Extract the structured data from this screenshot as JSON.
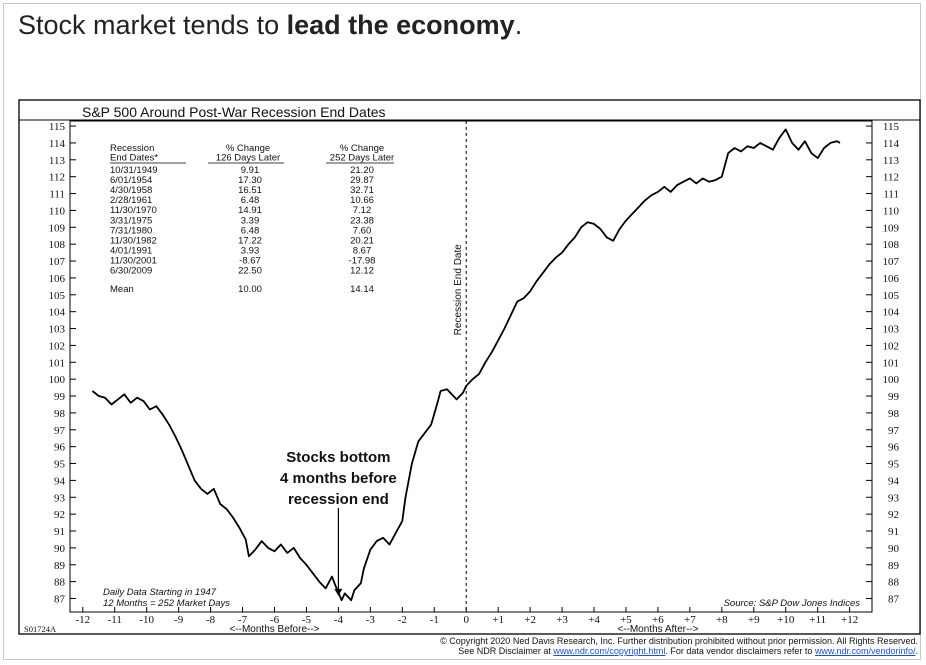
{
  "headline": {
    "prefix": "Stock market tends to ",
    "bold": "lead the economy",
    "suffix": "."
  },
  "chart_data": {
    "type": "line",
    "title": "S&P 500 Around Post-War Recession End Dates",
    "code": "S01724A",
    "ylim": [
      86.2,
      115.3
    ],
    "xlim": [
      -12.4,
      12.7
    ],
    "y_ticks": [
      87,
      88,
      89,
      90,
      91,
      92,
      93,
      94,
      95,
      96,
      97,
      98,
      99,
      100,
      101,
      102,
      103,
      104,
      105,
      106,
      107,
      108,
      109,
      110,
      111,
      112,
      113,
      114,
      115
    ],
    "x_ticks": [
      {
        "v": -12,
        "label": "-12"
      },
      {
        "v": -11,
        "label": "-11"
      },
      {
        "v": -10,
        "label": "-10"
      },
      {
        "v": -9,
        "label": "-9"
      },
      {
        "v": -8,
        "label": "-8"
      },
      {
        "v": -7,
        "label": "-7"
      },
      {
        "v": -6,
        "label": "-6"
      },
      {
        "v": -5,
        "label": "-5"
      },
      {
        "v": -4,
        "label": "-4"
      },
      {
        "v": -3,
        "label": "-3"
      },
      {
        "v": -2,
        "label": "-2"
      },
      {
        "v": -1,
        "label": "-1"
      },
      {
        "v": 0,
        "label": "0"
      },
      {
        "v": 1,
        "label": "+1"
      },
      {
        "v": 2,
        "label": "+2"
      },
      {
        "v": 3,
        "label": "+3"
      },
      {
        "v": 4,
        "label": "+4"
      },
      {
        "v": 5,
        "label": "+5"
      },
      {
        "v": 6,
        "label": "+6"
      },
      {
        "v": 7,
        "label": "+7"
      },
      {
        "v": 8,
        "label": "+8"
      },
      {
        "v": 9,
        "label": "+9"
      },
      {
        "v": 10,
        "label": "+10"
      },
      {
        "v": 11,
        "label": "+11"
      },
      {
        "v": 12,
        "label": "+12"
      }
    ],
    "xlabel_before": "<--Months Before-->",
    "xlabel_after": "<--Months After-->",
    "vline_label": "Recession End Date",
    "series": [
      {
        "points": [
          [
            -11.7,
            99.3
          ],
          [
            -11.5,
            99.0
          ],
          [
            -11.3,
            98.9
          ],
          [
            -11.1,
            98.5
          ],
          [
            -10.9,
            98.8
          ],
          [
            -10.7,
            99.1
          ],
          [
            -10.5,
            98.6
          ],
          [
            -10.3,
            98.9
          ],
          [
            -10.1,
            98.7
          ],
          [
            -9.9,
            98.2
          ],
          [
            -9.7,
            98.4
          ],
          [
            -9.5,
            97.9
          ],
          [
            -9.3,
            97.3
          ],
          [
            -9.1,
            96.6
          ],
          [
            -8.9,
            95.8
          ],
          [
            -8.7,
            94.9
          ],
          [
            -8.5,
            94.0
          ],
          [
            -8.3,
            93.5
          ],
          [
            -8.1,
            93.2
          ],
          [
            -7.9,
            93.5
          ],
          [
            -7.7,
            92.6
          ],
          [
            -7.5,
            92.3
          ],
          [
            -7.3,
            91.8
          ],
          [
            -7.1,
            91.2
          ],
          [
            -6.9,
            90.5
          ],
          [
            -6.8,
            89.5
          ],
          [
            -6.6,
            89.9
          ],
          [
            -6.4,
            90.4
          ],
          [
            -6.2,
            90.0
          ],
          [
            -6.0,
            89.8
          ],
          [
            -5.8,
            90.2
          ],
          [
            -5.6,
            89.7
          ],
          [
            -5.4,
            90.0
          ],
          [
            -5.2,
            89.4
          ],
          [
            -5.0,
            89.0
          ],
          [
            -4.8,
            88.5
          ],
          [
            -4.6,
            88.0
          ],
          [
            -4.4,
            87.6
          ],
          [
            -4.2,
            88.3
          ],
          [
            -4.1,
            87.8
          ],
          [
            -3.9,
            86.9
          ],
          [
            -3.8,
            87.3
          ],
          [
            -3.6,
            86.9
          ],
          [
            -3.5,
            87.5
          ],
          [
            -3.3,
            87.9
          ],
          [
            -3.2,
            88.8
          ],
          [
            -3.0,
            89.9
          ],
          [
            -2.8,
            90.4
          ],
          [
            -2.6,
            90.6
          ],
          [
            -2.4,
            90.2
          ],
          [
            -2.2,
            90.9
          ],
          [
            -2.0,
            91.6
          ],
          [
            -1.9,
            93.0
          ],
          [
            -1.7,
            95.0
          ],
          [
            -1.5,
            96.3
          ],
          [
            -1.3,
            96.8
          ],
          [
            -1.1,
            97.3
          ],
          [
            -0.9,
            98.6
          ],
          [
            -0.8,
            99.3
          ],
          [
            -0.6,
            99.4
          ],
          [
            -0.4,
            99.0
          ],
          [
            -0.3,
            98.8
          ],
          [
            -0.1,
            99.2
          ],
          [
            0.0,
            99.6
          ],
          [
            0.2,
            100.0
          ],
          [
            0.4,
            100.3
          ],
          [
            0.6,
            101.0
          ],
          [
            0.8,
            101.6
          ],
          [
            1.0,
            102.3
          ],
          [
            1.2,
            103.0
          ],
          [
            1.4,
            103.8
          ],
          [
            1.6,
            104.6
          ],
          [
            1.8,
            104.8
          ],
          [
            2.0,
            105.2
          ],
          [
            2.2,
            105.8
          ],
          [
            2.4,
            106.3
          ],
          [
            2.6,
            106.8
          ],
          [
            2.8,
            107.2
          ],
          [
            3.0,
            107.5
          ],
          [
            3.2,
            108.0
          ],
          [
            3.4,
            108.4
          ],
          [
            3.6,
            109.0
          ],
          [
            3.8,
            109.3
          ],
          [
            4.0,
            109.2
          ],
          [
            4.2,
            108.9
          ],
          [
            4.4,
            108.4
          ],
          [
            4.6,
            108.2
          ],
          [
            4.8,
            108.9
          ],
          [
            5.0,
            109.4
          ],
          [
            5.2,
            109.8
          ],
          [
            5.4,
            110.2
          ],
          [
            5.6,
            110.6
          ],
          [
            5.8,
            110.9
          ],
          [
            6.0,
            111.1
          ],
          [
            6.2,
            111.4
          ],
          [
            6.4,
            111.1
          ],
          [
            6.6,
            111.5
          ],
          [
            6.8,
            111.7
          ],
          [
            7.0,
            111.9
          ],
          [
            7.2,
            111.6
          ],
          [
            7.4,
            111.9
          ],
          [
            7.6,
            111.7
          ],
          [
            7.8,
            111.8
          ],
          [
            8.0,
            112.0
          ],
          [
            8.2,
            113.4
          ],
          [
            8.4,
            113.7
          ],
          [
            8.6,
            113.5
          ],
          [
            8.8,
            113.8
          ],
          [
            9.0,
            113.7
          ],
          [
            9.2,
            114.0
          ],
          [
            9.4,
            113.8
          ],
          [
            9.6,
            113.6
          ],
          [
            9.8,
            114.3
          ],
          [
            10.0,
            114.8
          ],
          [
            10.2,
            114.0
          ],
          [
            10.4,
            113.6
          ],
          [
            10.6,
            114.1
          ],
          [
            10.8,
            113.4
          ],
          [
            11.0,
            113.1
          ],
          [
            11.2,
            113.7
          ],
          [
            11.4,
            114.0
          ],
          [
            11.6,
            114.1
          ],
          [
            11.7,
            114.0
          ]
        ]
      }
    ],
    "table": {
      "headers": [
        [
          "Recession",
          "End Dates*"
        ],
        [
          "% Change",
          "126 Days Later"
        ],
        [
          "% Change",
          "252 Days Later"
        ]
      ],
      "rows": [
        [
          "10/31/1949",
          "9.91",
          "21.20"
        ],
        [
          "6/01/1954",
          "17.30",
          "29.87"
        ],
        [
          "4/30/1958",
          "16.51",
          "32.71"
        ],
        [
          "2/28/1961",
          "6.48",
          "10.66"
        ],
        [
          "11/30/1970",
          "14.91",
          "7.12"
        ],
        [
          "3/31/1975",
          "3.39",
          "23.38"
        ],
        [
          "7/31/1980",
          "6.48",
          "7.60"
        ],
        [
          "11/30/1982",
          "17.22",
          "20.21"
        ],
        [
          "4/01/1991",
          "3.93",
          "8.67"
        ],
        [
          "11/30/2001",
          "-8.67",
          "-17.98"
        ],
        [
          "6/30/2009",
          "22.50",
          "12.12"
        ]
      ],
      "mean": [
        "Mean",
        "10.00",
        "14.14"
      ]
    },
    "annotation": {
      "lines": [
        "Stocks bottom",
        "4 months before",
        "recession end"
      ],
      "x": -4,
      "y": 87.1
    },
    "notes": [
      "Daily Data Starting in 1947",
      "12 Months = 252 Market Days"
    ],
    "source": "Source: S&P Dow Jones Indices"
  },
  "copyright": {
    "line1": "© Copyright 2020 Ned Davis Research, Inc.  Further distribution prohibited without prior permission.  All Rights Reserved.",
    "line2_a": "See NDR Disclaimer at ",
    "link1": "www.ndr.com/copyright.html",
    "line2_b": ". For data vendor disclaimers refer to ",
    "link2": "www.ndr.com/vendorinfo/",
    "line2_c": "."
  }
}
